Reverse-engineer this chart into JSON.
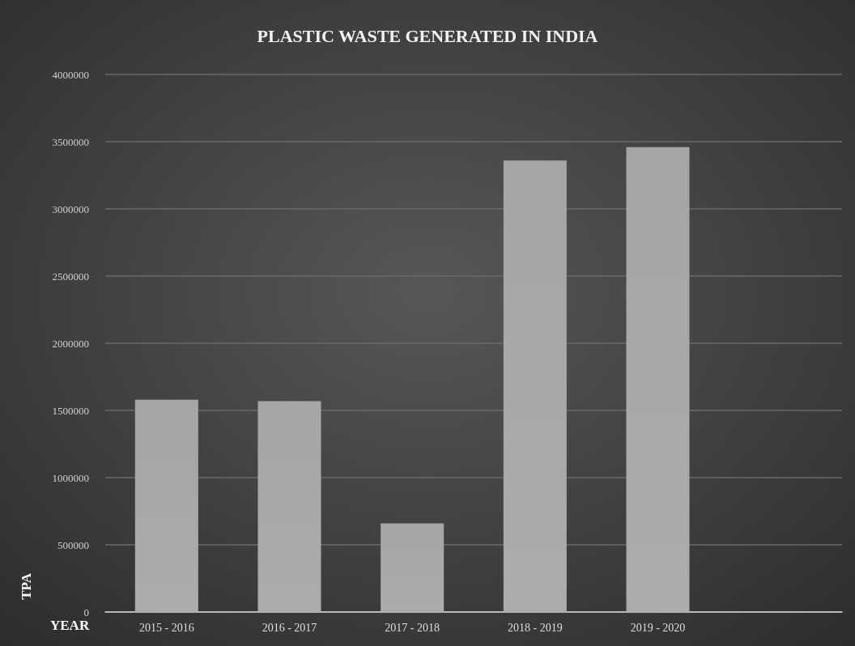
{
  "chart_data": {
    "type": "bar",
    "title": "PLASTIC WASTE GENERATED IN INDIA",
    "xlabel": "YEAR",
    "ylabel": "TPA",
    "categories": [
      "2015 - 2016",
      "2016 - 2017",
      "2017 - 2018",
      "2018 - 2019",
      "2019 - 2020",
      null
    ],
    "values": [
      1580000,
      1570000,
      660000,
      3360000,
      3460000,
      null
    ],
    "color": "#a0a0a0",
    "ylim": [
      0,
      4000000
    ],
    "yticks": [
      0,
      500000,
      1000000,
      1500000,
      2000000,
      2500000,
      3000000,
      3500000,
      4000000
    ],
    "grid": "y"
  }
}
